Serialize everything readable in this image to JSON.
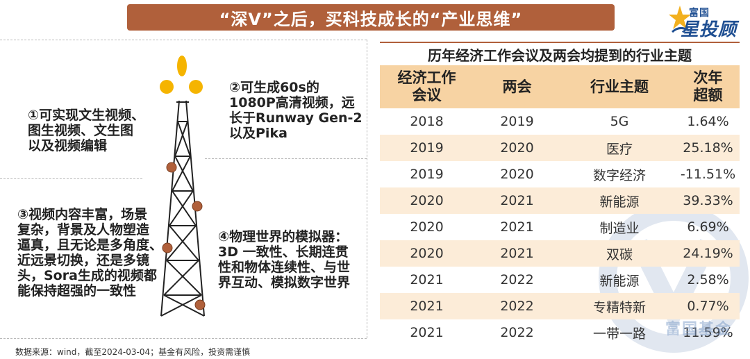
{
  "header": {
    "title": "“深V”之后，买科技成长的“产业思维”"
  },
  "logo": {
    "top": "富国",
    "main": "星投顾"
  },
  "features": [
    {
      "lines": [
        "①可实现文生视频、",
        "图生视频、文生图",
        "以及视频编辑"
      ]
    },
    {
      "lines": [
        "②可生成60s的",
        "1080P高清视频，远",
        "长于Runway Gen-2",
        "以及Pika"
      ]
    },
    {
      "lines": [
        "③视频内容丰富，场景",
        "复杂，背景及人物塑造",
        "逼真，且无论是多角度、",
        "近远景切换，还是多镜",
        "头，Sora生成的视频都",
        "能保持超强的一致性"
      ]
    },
    {
      "lines": [
        "④物理世界的模拟器：",
        "3D 一致性、长期连贯",
        "性和物体连续性、与世",
        "界互动、模拟数字世界"
      ]
    }
  ],
  "source": "数据来源：wind，截至2024-03-04；基金有风险，投资需谨慎",
  "table": {
    "title": "历年经济工作会议及两会均提到的行业主题",
    "headers": [
      "经济工作\n会议",
      "两会",
      "行业主题",
      "次年\n超额"
    ],
    "rows": [
      [
        "2018",
        "2019",
        "5G",
        "1.64%"
      ],
      [
        "2019",
        "2020",
        "医疗",
        "25.18%"
      ],
      [
        "2019",
        "2020",
        "数字经济",
        "-11.51%"
      ],
      [
        "2020",
        "2021",
        "新能源",
        "39.33%"
      ],
      [
        "2020",
        "2021",
        "制造业",
        "6.69%"
      ],
      [
        "2020",
        "2021",
        "双碳",
        "24.19%"
      ],
      [
        "2021",
        "2022",
        "新能源",
        "2.58%"
      ],
      [
        "2021",
        "2022",
        "专精特新",
        "0.77%"
      ],
      [
        "2021",
        "2022",
        "一带一路",
        "11.59%"
      ]
    ]
  },
  "watermark": "富国基金",
  "colors": {
    "banner": "#b0603b",
    "header_row": "#f7d3a3",
    "alt_row": "#fcecd8",
    "flame": "#f5b400",
    "brand_blue": "#1f4f92"
  }
}
